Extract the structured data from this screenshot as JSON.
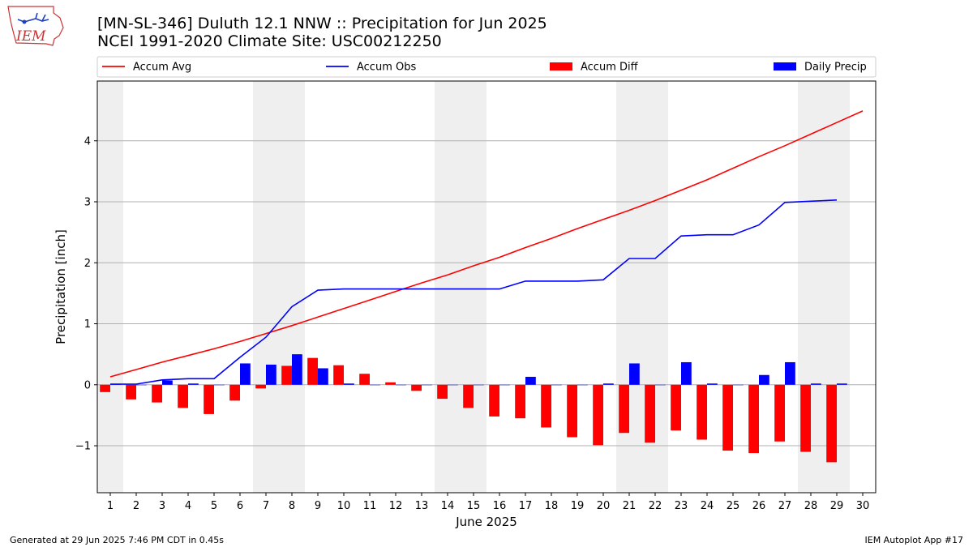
{
  "page": {
    "logo_text": "IEM",
    "title_line1": "[MN-SL-346] Duluth 12.1 NNW :: Precipitation for Jun 2025",
    "title_line2": "NCEI 1991-2020 Climate Site: USC00212250",
    "footer_left": "Generated at 29 Jun 2025 7:46 PM CDT in 0.45s",
    "footer_right": "IEM Autoplot App #17"
  },
  "chart_data": {
    "type": "bar",
    "xlabel": "June 2025",
    "ylabel": "Precipitation [inch]",
    "ylim": [
      -1.77,
      4.98
    ],
    "xlim": [
      0.5,
      30.5
    ],
    "y_ticks": [
      -1,
      0,
      1,
      2,
      3,
      4
    ],
    "y_tick_labels": [
      "−1",
      "0",
      "1",
      "2",
      "3",
      "4"
    ],
    "x": [
      1,
      2,
      3,
      4,
      5,
      6,
      7,
      8,
      9,
      10,
      11,
      12,
      13,
      14,
      15,
      16,
      17,
      18,
      19,
      20,
      21,
      22,
      23,
      24,
      25,
      26,
      27,
      28,
      29,
      30
    ],
    "weekend_shading": [
      [
        0.5,
        1.5
      ],
      [
        6.5,
        8.5
      ],
      [
        13.5,
        15.5
      ],
      [
        20.5,
        22.5
      ],
      [
        27.5,
        29.5
      ]
    ],
    "grid": "horizontal",
    "legend_position": "top",
    "series": [
      {
        "name": "Accum Avg",
        "kind": "line",
        "color": "#ff0000",
        "values": [
          0.13,
          0.25,
          0.37,
          0.48,
          0.59,
          0.71,
          0.84,
          0.97,
          1.11,
          1.25,
          1.39,
          1.53,
          1.67,
          1.8,
          1.95,
          2.09,
          2.25,
          2.4,
          2.56,
          2.71,
          2.86,
          3.02,
          3.19,
          3.36,
          3.55,
          3.74,
          3.92,
          4.11,
          4.3,
          4.49
        ]
      },
      {
        "name": "Accum Obs",
        "kind": "line",
        "color": "#0000ff",
        "values": [
          0.01,
          0.01,
          0.08,
          0.1,
          0.1,
          0.45,
          0.78,
          1.28,
          1.55,
          1.57,
          1.57,
          1.57,
          1.57,
          1.57,
          1.57,
          1.57,
          1.7,
          1.7,
          1.7,
          1.72,
          2.07,
          2.07,
          2.44,
          2.46,
          2.46,
          2.62,
          2.99,
          3.01,
          3.03,
          null
        ]
      },
      {
        "name": "Accum Diff",
        "kind": "bar",
        "color": "#ff0000",
        "offset": -0.2,
        "values": [
          -0.12,
          -0.24,
          -0.29,
          -0.38,
          -0.48,
          -0.26,
          -0.06,
          0.31,
          0.44,
          0.32,
          0.18,
          0.04,
          -0.1,
          -0.23,
          -0.38,
          -0.52,
          -0.55,
          -0.7,
          -0.86,
          -0.99,
          -0.79,
          -0.95,
          -0.75,
          -0.9,
          -1.08,
          -1.12,
          -0.93,
          -1.1,
          -1.27,
          null
        ]
      },
      {
        "name": "Daily Precip",
        "kind": "bar",
        "color": "#0000ff",
        "offset": 0.2,
        "values": [
          0.01,
          0.0,
          0.07,
          0.02,
          0.0,
          0.35,
          0.33,
          0.5,
          0.27,
          0.02,
          0.0,
          0.0,
          0.0,
          0.0,
          0.0,
          0.0,
          0.13,
          0.0,
          0.0,
          0.02,
          0.35,
          0.0,
          0.37,
          0.02,
          0.0,
          0.16,
          0.37,
          0.02,
          0.02,
          null
        ]
      }
    ]
  }
}
